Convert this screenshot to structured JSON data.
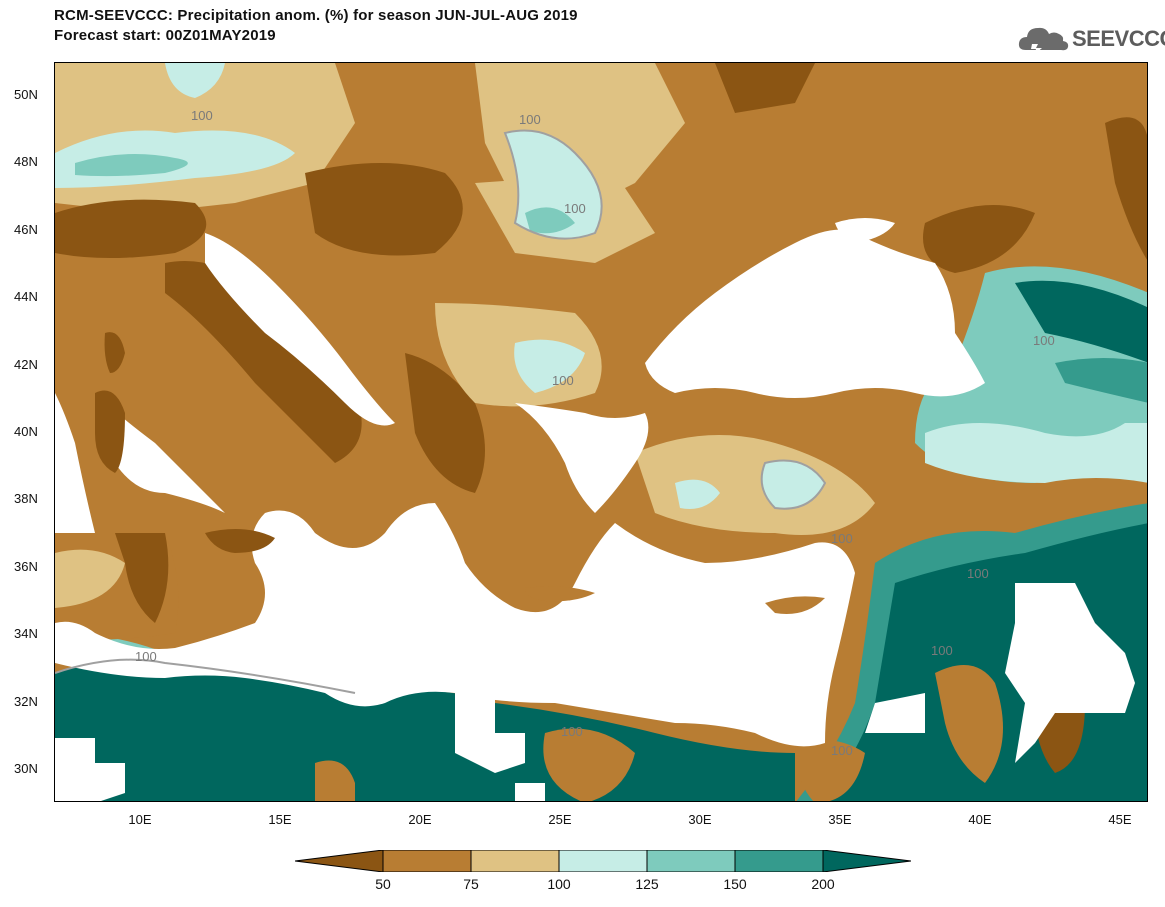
{
  "header": {
    "title_line1": "RCM-SEEVCCC: Precipitation anom. (%) for season JUN-JUL-AUG 2019",
    "title_line2": "Forecast start: 00Z01MAY2019"
  },
  "logo": {
    "text": "SEEVCCC",
    "icon": "cloud-icon"
  },
  "axes": {
    "y_ticks": [
      "50N",
      "48N",
      "46N",
      "44N",
      "42N",
      "40N",
      "38N",
      "36N",
      "34N",
      "32N",
      "30N"
    ],
    "x_ticks": [
      "10E",
      "15E",
      "20E",
      "25E",
      "30E",
      "35E",
      "40E",
      "45E"
    ]
  },
  "contour_label": "100",
  "colorbar": {
    "labels": [
      "50",
      "75",
      "100",
      "125",
      "150",
      "200"
    ],
    "colors": [
      "#8b5513",
      "#b87d33",
      "#dfc283",
      "#c6ede6",
      "#7ecbbd",
      "#359b8d",
      "#00675e"
    ]
  }
}
